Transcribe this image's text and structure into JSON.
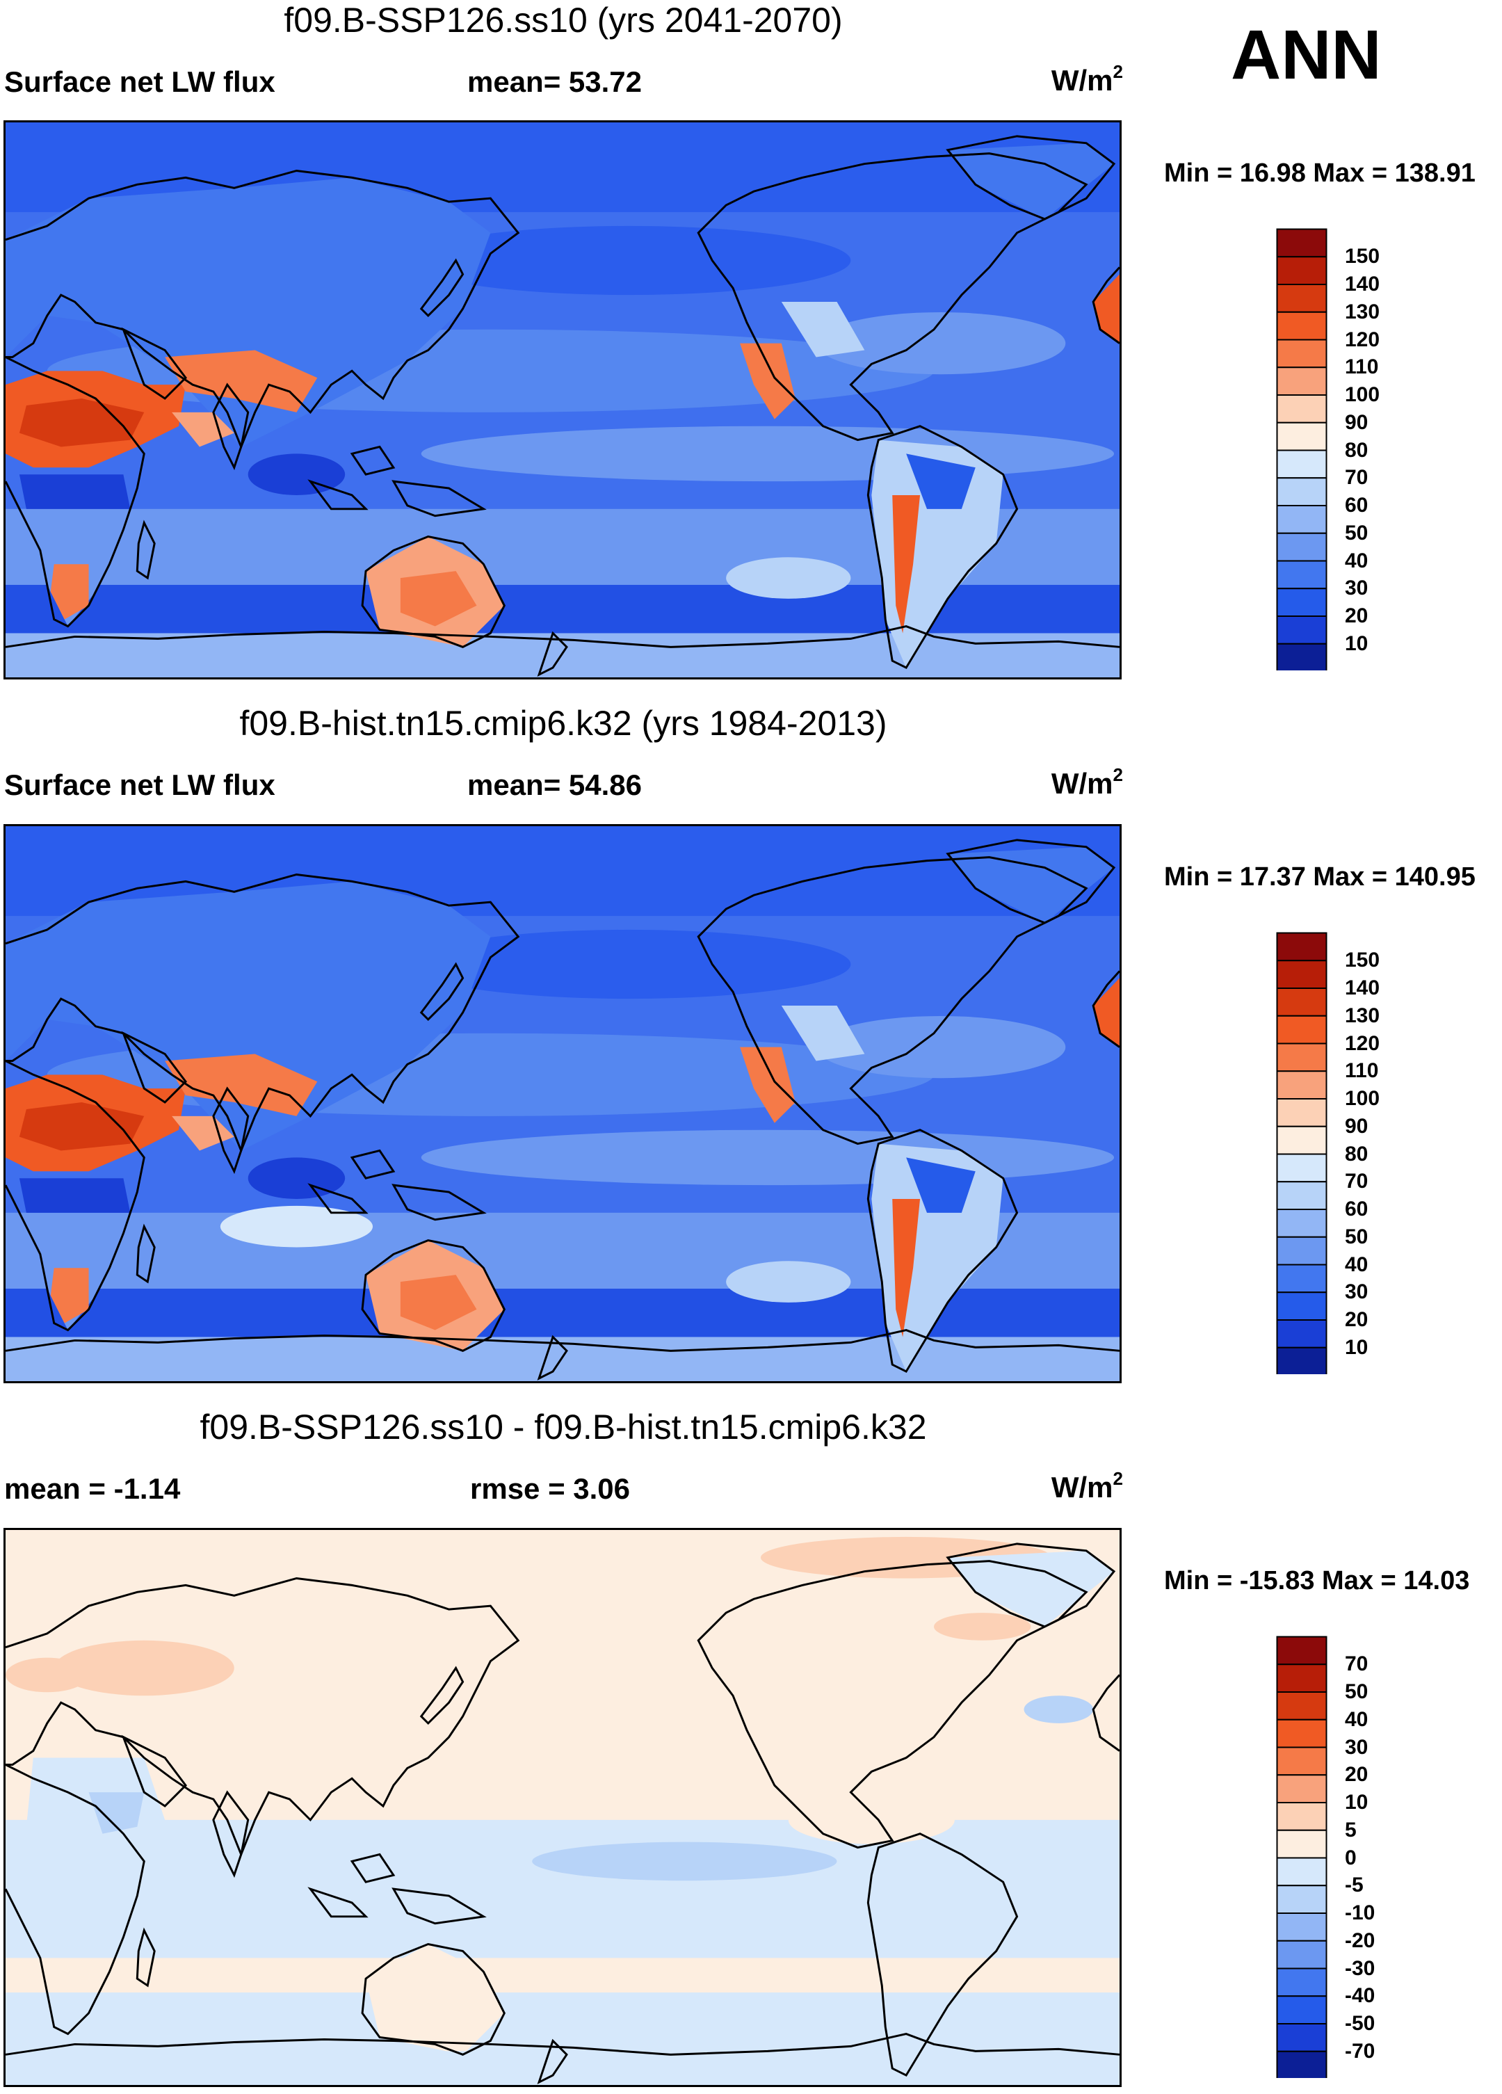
{
  "season": "ANN",
  "panels": [
    {
      "id": "ssp126",
      "title": "f09.B-SSP126.ss10 (yrs 2041-2070)",
      "left_label": "Surface net LW flux",
      "center_label": "mean=  53.72",
      "units": "W/m",
      "units_sup": "2",
      "minmax": "Min =  16.98 Max = 138.91",
      "levels": [
        "150",
        "140",
        "130",
        "120",
        "110",
        "100",
        "90",
        "80",
        "70",
        "60",
        "50",
        "40",
        "30",
        "20",
        "10"
      ],
      "colors": [
        "#8c0a0a",
        "#b71e08",
        "#d63a10",
        "#f05a24",
        "#f57a48",
        "#f8a27c",
        "#fcd1b6",
        "#fdeee0",
        "#d6e8fb",
        "#b7d3f8",
        "#92b6f5",
        "#6c98f1",
        "#4277ef",
        "#255bea",
        "#1a3fd6",
        "#0c1f96"
      ]
    },
    {
      "id": "hist",
      "title": "f09.B-hist.tn15.cmip6.k32 (yrs 1984-2013)",
      "left_label": "Surface net LW flux",
      "center_label": "mean=  54.86",
      "units": "W/m",
      "units_sup": "2",
      "minmax": "Min =  17.37 Max = 140.95",
      "levels": [
        "150",
        "140",
        "130",
        "120",
        "110",
        "100",
        "90",
        "80",
        "70",
        "60",
        "50",
        "40",
        "30",
        "20",
        "10"
      ],
      "colors": [
        "#8c0a0a",
        "#b71e08",
        "#d63a10",
        "#f05a24",
        "#f57a48",
        "#f8a27c",
        "#fcd1b6",
        "#fdeee0",
        "#d6e8fb",
        "#b7d3f8",
        "#92b6f5",
        "#6c98f1",
        "#4277ef",
        "#255bea",
        "#1a3fd6",
        "#0c1f96"
      ]
    },
    {
      "id": "diff",
      "title": "f09.B-SSP126.ss10 - f09.B-hist.tn15.cmip6.k32",
      "left_label": "mean =  -1.14",
      "center_label": "rmse =    3.06",
      "units": "W/m",
      "units_sup": "2",
      "minmax": "Min = -15.83 Max =  14.03",
      "levels": [
        "70",
        "50",
        "40",
        "30",
        "20",
        "10",
        "5",
        "0",
        "-5",
        "-10",
        "-20",
        "-30",
        "-40",
        "-50",
        "-70"
      ],
      "colors": [
        "#8c0a0a",
        "#b71e08",
        "#d63a10",
        "#f05a24",
        "#f57a48",
        "#f8a27c",
        "#fcd1b6",
        "#fdeee0",
        "#d6e8fb",
        "#b7d3f8",
        "#92b6f5",
        "#6c98f1",
        "#4277ef",
        "#255bea",
        "#1a3fd6",
        "#0c1f96"
      ]
    }
  ]
}
